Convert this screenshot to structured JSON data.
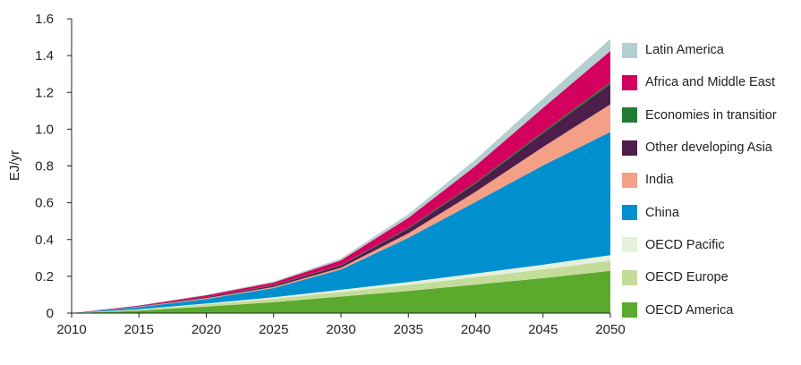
{
  "chart_data": {
    "type": "area",
    "stacked": true,
    "title": "",
    "xlabel": "",
    "ylabel": "EJ/yr",
    "x": [
      2010,
      2015,
      2020,
      2025,
      2030,
      2035,
      2040,
      2045,
      2050
    ],
    "xticks": [
      "2010",
      "2015",
      "2020",
      "2025",
      "2030",
      "2035",
      "2040",
      "2045",
      "2050"
    ],
    "yticks": [
      "0",
      "0.2",
      "0.4",
      "0.6",
      "0.8",
      "1.0",
      "1.2",
      "1.4",
      "1.6"
    ],
    "xlim": [
      2010,
      2050
    ],
    "ylim": [
      0,
      1.6
    ],
    "grid": false,
    "legend_position": "right",
    "series": [
      {
        "name": "OECD America",
        "color": "#5aaa2e",
        "values": [
          0,
          0.013,
          0.035,
          0.06,
          0.09,
          0.12,
          0.155,
          0.19,
          0.23
        ]
      },
      {
        "name": "OECD Europe",
        "color": "#c3dc99",
        "values": [
          0,
          0.006,
          0.012,
          0.018,
          0.025,
          0.033,
          0.04,
          0.048,
          0.055
        ]
      },
      {
        "name": "OECD Pacific",
        "color": "#e5f1da",
        "values": [
          0,
          0.002,
          0.005,
          0.008,
          0.012,
          0.016,
          0.02,
          0.025,
          0.03
        ]
      },
      {
        "name": "China",
        "color": "#0090d0",
        "values": [
          0,
          0.012,
          0.025,
          0.05,
          0.11,
          0.24,
          0.39,
          0.54,
          0.67
        ]
      },
      {
        "name": "India",
        "color": "#f3a086",
        "values": [
          0,
          0.002,
          0.004,
          0.006,
          0.01,
          0.025,
          0.055,
          0.1,
          0.15
        ]
      },
      {
        "name": "Other developing Asia",
        "color": "#4d1d4b",
        "values": [
          0,
          0.002,
          0.005,
          0.008,
          0.012,
          0.025,
          0.045,
          0.075,
          0.11
        ]
      },
      {
        "name": "Economies in transitior",
        "color": "#1f7a33",
        "values": [
          0,
          0.0,
          0.001,
          0.002,
          0.003,
          0.004,
          0.006,
          0.008,
          0.01
        ]
      },
      {
        "name": "Africa and Middle East",
        "color": "#d4005e",
        "values": [
          0,
          0.004,
          0.01,
          0.015,
          0.025,
          0.055,
          0.09,
          0.13,
          0.17
        ]
      },
      {
        "name": "Latin America",
        "color": "#b4cfd0",
        "values": [
          0,
          0.001,
          0.003,
          0.005,
          0.01,
          0.02,
          0.035,
          0.05,
          0.065
        ]
      }
    ]
  }
}
